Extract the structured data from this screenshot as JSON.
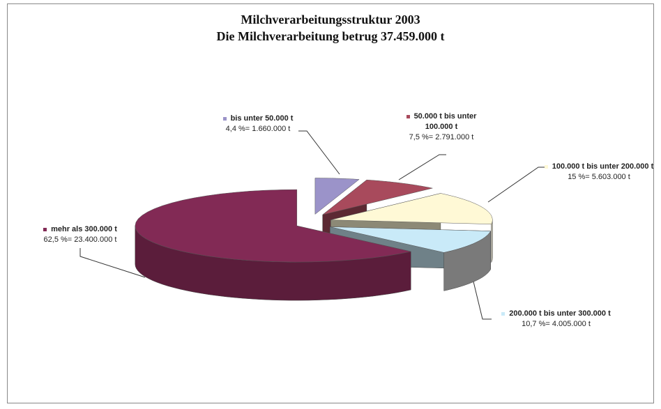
{
  "chart_data": {
    "type": "pie",
    "title": "Milchverarbeitungsstruktur 2003",
    "subtitle": "Die Milchverarbeitung betrug 37.459.000 t",
    "categories": [
      "bis unter 50.000 t",
      "50.000 t bis unter 100.000 t",
      "100.000 t bis unter 200.000 t",
      "200.000 t bis unter 300.000 t",
      "mehr als 300.000 t"
    ],
    "values": [
      4.4,
      7.5,
      15,
      10.7,
      62.5
    ],
    "value_labels": [
      "4,4 %= 1.660.000 t",
      "7,5 %= 2.791.000 t",
      "15 %= 5.603.000 t",
      "10,7 %= 4.005.000 t",
      "62,5 %= 23.400.000 t"
    ],
    "colors": [
      "#9b93c9",
      "#a84a5c",
      "#fff9d6",
      "#c9eaf8",
      "#822a55"
    ]
  }
}
